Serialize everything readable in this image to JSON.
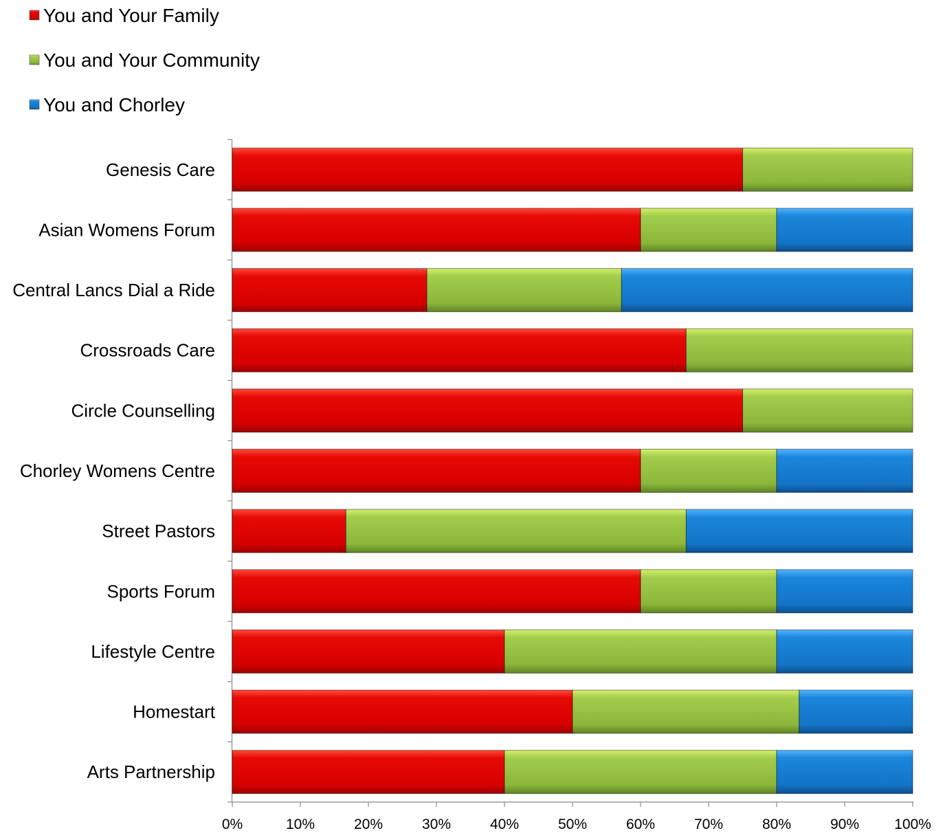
{
  "chart_data": {
    "type": "bar",
    "orientation": "horizontal",
    "stacked": "percent",
    "categories": [
      "Genesis Care",
      "Asian Womens Forum",
      "Central Lancs Dial a Ride",
      "Crossroads Care",
      "Circle Counselling",
      "Chorley Womens Centre",
      "Street Pastors",
      "Sports Forum",
      "Lifestyle Centre",
      "Homestart",
      "Arts Partnership"
    ],
    "series": [
      {
        "name": "You and Your Family",
        "color": "#d90000",
        "values": [
          75,
          60,
          28.6,
          66.7,
          75,
          60,
          16.7,
          60,
          40,
          50,
          40
        ]
      },
      {
        "name": "You and Your Community",
        "color": "#8db53c",
        "values": [
          25,
          20,
          28.6,
          33.3,
          25,
          20,
          50,
          20,
          40,
          33.3,
          40
        ]
      },
      {
        "name": "You and Chorley",
        "color": "#1676c8",
        "values": [
          0,
          20,
          42.8,
          0,
          0,
          20,
          33.3,
          20,
          20,
          16.7,
          20
        ]
      }
    ],
    "xlim": [
      0,
      100
    ],
    "xticks": [
      "0%",
      "10%",
      "20%",
      "30%",
      "40%",
      "50%",
      "60%",
      "70%",
      "80%",
      "90%",
      "100%"
    ],
    "legend_position": "top-left",
    "grid": false,
    "title": "",
    "xlabel": "",
    "ylabel": ""
  }
}
